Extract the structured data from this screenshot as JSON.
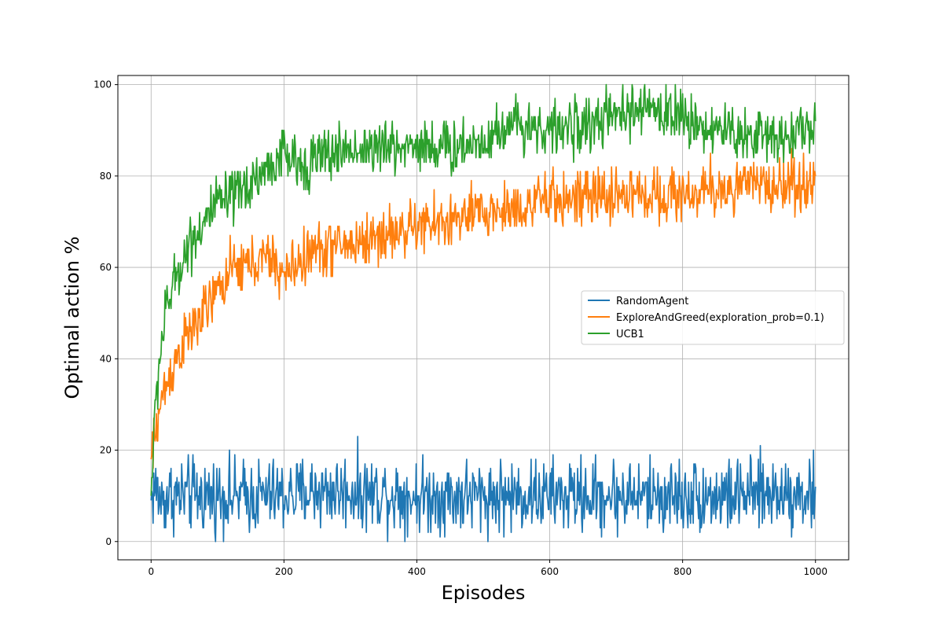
{
  "chart_data": {
    "type": "line",
    "xlabel": "Episodes",
    "ylabel": "Optimal action %",
    "xlim": [
      -50,
      1050
    ],
    "ylim": [
      -4,
      102
    ],
    "xticks": [
      0,
      200,
      400,
      600,
      800,
      1000
    ],
    "yticks": [
      0,
      20,
      40,
      60,
      80,
      100
    ],
    "grid": true,
    "legend_position": "center-right",
    "series": [
      {
        "name": "RandomAgent",
        "color": "#1f77b4",
        "noise": 4,
        "points": [
          [
            0,
            9
          ],
          [
            5,
            12
          ],
          [
            15,
            9
          ],
          [
            30,
            10
          ],
          [
            60,
            10
          ],
          [
            100,
            10
          ],
          [
            150,
            10
          ],
          [
            200,
            10
          ],
          [
            250,
            11
          ],
          [
            280,
            11
          ],
          [
            300,
            11
          ],
          [
            400,
            10
          ],
          [
            500,
            10
          ],
          [
            600,
            10
          ],
          [
            700,
            10
          ],
          [
            800,
            10
          ],
          [
            900,
            10
          ],
          [
            950,
            11
          ],
          [
            1000,
            10
          ]
        ]
      },
      {
        "name": "ExploreAndGreed(exploration_prob=0.1)",
        "color": "#ff7f0e",
        "noise": 3,
        "points": [
          [
            0,
            18
          ],
          [
            3,
            20
          ],
          [
            10,
            27
          ],
          [
            20,
            33
          ],
          [
            30,
            37
          ],
          [
            40,
            41
          ],
          [
            60,
            46
          ],
          [
            80,
            50
          ],
          [
            100,
            55
          ],
          [
            120,
            59
          ],
          [
            150,
            61
          ],
          [
            180,
            62
          ],
          [
            200,
            58
          ],
          [
            220,
            61
          ],
          [
            250,
            64
          ],
          [
            300,
            65
          ],
          [
            350,
            67
          ],
          [
            400,
            69
          ],
          [
            450,
            70
          ],
          [
            500,
            72
          ],
          [
            550,
            73
          ],
          [
            600,
            75
          ],
          [
            650,
            75
          ],
          [
            700,
            76
          ],
          [
            750,
            76
          ],
          [
            800,
            76
          ],
          [
            850,
            77
          ],
          [
            900,
            78
          ],
          [
            950,
            78
          ],
          [
            1000,
            79
          ]
        ]
      },
      {
        "name": "UCB1",
        "color": "#2ca02c",
        "noise": 3,
        "points": [
          [
            0,
            10
          ],
          [
            3,
            20
          ],
          [
            8,
            32
          ],
          [
            15,
            43
          ],
          [
            25,
            52
          ],
          [
            40,
            59
          ],
          [
            60,
            66
          ],
          [
            80,
            70
          ],
          [
            100,
            74
          ],
          [
            125,
            75
          ],
          [
            150,
            79
          ],
          [
            180,
            82
          ],
          [
            200,
            85
          ],
          [
            220,
            82
          ],
          [
            250,
            84
          ],
          [
            300,
            86
          ],
          [
            350,
            86
          ],
          [
            400,
            87
          ],
          [
            450,
            86
          ],
          [
            500,
            88
          ],
          [
            550,
            92
          ],
          [
            600,
            90
          ],
          [
            650,
            91
          ],
          [
            700,
            93
          ],
          [
            750,
            95
          ],
          [
            800,
            93
          ],
          [
            850,
            90
          ],
          [
            900,
            89
          ],
          [
            950,
            89
          ],
          [
            1000,
            91
          ]
        ]
      }
    ]
  }
}
